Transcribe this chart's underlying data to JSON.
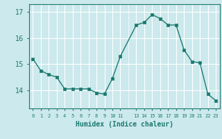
{
  "x": [
    0,
    1,
    2,
    3,
    4,
    5,
    6,
    7,
    8,
    9,
    10,
    11,
    13,
    14,
    15,
    16,
    17,
    18,
    19,
    20,
    21,
    22,
    23
  ],
  "y": [
    15.2,
    14.75,
    14.6,
    14.5,
    14.05,
    14.05,
    14.05,
    14.05,
    13.9,
    13.85,
    14.45,
    15.3,
    16.5,
    16.6,
    16.9,
    16.75,
    16.5,
    16.5,
    15.55,
    15.1,
    15.05,
    13.85,
    13.6
  ],
  "line_color": "#1a7a6e",
  "marker_color": "#1a7a6e",
  "bg_color": "#cce9ed",
  "grid_color": "#ffffff",
  "axis_label_color": "#1a7a6e",
  "tick_color": "#1a7a6e",
  "xlabel": "Humidex (Indice chaleur)",
  "yticks": [
    14,
    15,
    16,
    17
  ],
  "ylim": [
    13.3,
    17.3
  ],
  "xlim": [
    -0.5,
    23.5
  ],
  "xtick_positions": [
    0,
    1,
    2,
    3,
    4,
    5,
    6,
    7,
    8,
    9,
    10,
    11,
    13,
    14,
    15,
    16,
    17,
    18,
    19,
    20,
    21,
    22,
    23
  ],
  "xtick_labels": [
    "0",
    "1",
    "2",
    "3",
    "4",
    "5",
    "6",
    "7",
    "8",
    "9",
    "10",
    "11",
    "13",
    "14",
    "15",
    "16",
    "17",
    "18",
    "19",
    "20",
    "21",
    "22",
    "23"
  ]
}
